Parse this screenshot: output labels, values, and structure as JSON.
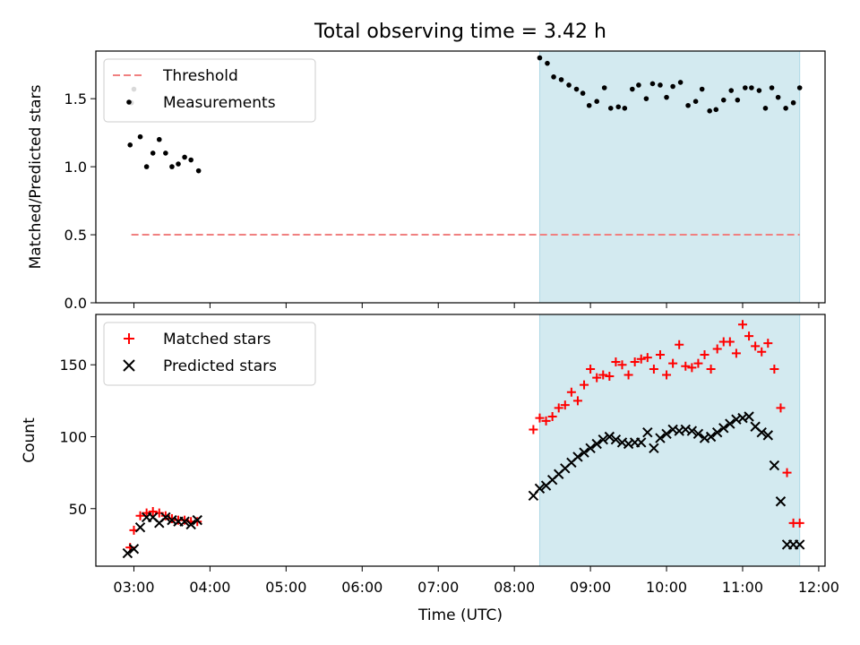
{
  "figure": {
    "title": "Total observing time = 3.42 h",
    "xlabel": "Time (UTC)",
    "x_ticks": [
      "03:00",
      "04:00",
      "05:00",
      "06:00",
      "07:00",
      "08:00",
      "09:00",
      "10:00",
      "11:00",
      "12:00"
    ],
    "highlight_color": "#d3eaf0",
    "highlight_edge_color": "#add8e6"
  },
  "chart_data": [
    {
      "type": "scatter",
      "ylabel": "Matched/Predicted stars",
      "xlim": [
        "02:30",
        "12:05"
      ],
      "ylim": [
        0,
        1.85
      ],
      "y_ticks": [
        "0.0",
        "0.5",
        "1.0",
        "1.5"
      ],
      "highlight_span": [
        "08:20",
        "11:45"
      ],
      "legend": {
        "placement": "upper-left",
        "entries": [
          "Threshold",
          "Measurements"
        ]
      },
      "series": [
        {
          "name": "Threshold",
          "kind": "dashed-line",
          "color": "#f08080",
          "x": [
            "02:58",
            "11:45"
          ],
          "y": [
            0.5,
            0.5
          ]
        },
        {
          "name": "Measurements",
          "kind": "dots",
          "color": "#000000",
          "x": [
            "02:57",
            "02:58",
            "03:00",
            "03:05",
            "03:10",
            "03:15",
            "03:20",
            "03:25",
            "03:30",
            "03:35",
            "03:40",
            "03:45",
            "03:51",
            "08:20",
            "08:26",
            "08:31",
            "08:37",
            "08:43",
            "08:49",
            "08:54",
            "08:59",
            "09:05",
            "09:11",
            "09:16",
            "09:22",
            "09:27",
            "09:33",
            "09:38",
            "09:44",
            "09:49",
            "09:55",
            "10:00",
            "10:05",
            "10:11",
            "10:17",
            "10:23",
            "10:28",
            "10:34",
            "10:39",
            "10:45",
            "10:51",
            "10:56",
            "11:02",
            "11:07",
            "11:13",
            "11:18",
            "11:23",
            "11:28",
            "11:34",
            "11:40",
            "11:45"
          ],
          "y": [
            1.16,
            1.47,
            1.57,
            1.22,
            1.0,
            1.1,
            1.2,
            1.1,
            1.0,
            1.02,
            1.07,
            1.05,
            0.97,
            1.8,
            1.76,
            1.66,
            1.64,
            1.6,
            1.57,
            1.54,
            1.45,
            1.48,
            1.58,
            1.43,
            1.44,
            1.43,
            1.57,
            1.6,
            1.5,
            1.61,
            1.6,
            1.51,
            1.59,
            1.62,
            1.45,
            1.48,
            1.57,
            1.41,
            1.42,
            1.49,
            1.56,
            1.49,
            1.58,
            1.58,
            1.56,
            1.43,
            1.58,
            1.51,
            1.43,
            1.47,
            1.58
          ]
        }
      ]
    },
    {
      "type": "scatter",
      "ylabel": "Count",
      "xlim": [
        "02:30",
        "12:05"
      ],
      "ylim": [
        10,
        185
      ],
      "y_ticks": [
        "50",
        "100",
        "150"
      ],
      "highlight_span": [
        "08:20",
        "11:45"
      ],
      "legend": {
        "placement": "upper-left",
        "entries": [
          "Matched stars",
          "Predicted stars"
        ]
      },
      "series": [
        {
          "name": "Matched stars",
          "kind": "plus",
          "color": "#ff0000",
          "x": [
            "02:57",
            "03:00",
            "03:05",
            "03:10",
            "03:15",
            "03:20",
            "03:25",
            "03:30",
            "03:35",
            "03:40",
            "03:45",
            "03:50",
            "08:15",
            "08:20",
            "08:25",
            "08:30",
            "08:35",
            "08:40",
            "08:45",
            "08:50",
            "08:55",
            "09:00",
            "09:05",
            "09:10",
            "09:15",
            "09:20",
            "09:25",
            "09:30",
            "09:35",
            "09:40",
            "09:45",
            "09:50",
            "09:55",
            "10:00",
            "10:05",
            "10:10",
            "10:15",
            "10:20",
            "10:25",
            "10:30",
            "10:35",
            "10:40",
            "10:45",
            "10:50",
            "10:55",
            "11:00",
            "11:05",
            "11:10",
            "11:15",
            "11:20",
            "11:25",
            "11:30",
            "11:35",
            "11:40",
            "11:45"
          ],
          "y": [
            23,
            35,
            45,
            47,
            48,
            47,
            45,
            43,
            42,
            42,
            41,
            41,
            105,
            113,
            111,
            114,
            120,
            122,
            131,
            125,
            136,
            147,
            141,
            143,
            142,
            152,
            150,
            143,
            152,
            154,
            155,
            147,
            157,
            143,
            151,
            164,
            149,
            148,
            151,
            157,
            147,
            161,
            166,
            166,
            158,
            178,
            170,
            163,
            159,
            165,
            147,
            120,
            75,
            40,
            40
          ]
        },
        {
          "name": "Predicted stars",
          "kind": "x",
          "color": "#000000",
          "x": [
            "02:55",
            "03:00",
            "03:05",
            "03:10",
            "03:15",
            "03:20",
            "03:25",
            "03:30",
            "03:35",
            "03:40",
            "03:45",
            "03:50",
            "08:15",
            "08:20",
            "08:25",
            "08:30",
            "08:35",
            "08:40",
            "08:45",
            "08:50",
            "08:55",
            "09:00",
            "09:05",
            "09:10",
            "09:15",
            "09:20",
            "09:25",
            "09:30",
            "09:35",
            "09:40",
            "09:45",
            "09:50",
            "09:55",
            "10:00",
            "10:05",
            "10:10",
            "10:15",
            "10:20",
            "10:25",
            "10:30",
            "10:35",
            "10:40",
            "10:45",
            "10:50",
            "10:55",
            "11:00",
            "11:05",
            "11:10",
            "11:15",
            "11:20",
            "11:25",
            "11:30",
            "11:35",
            "11:40",
            "11:45"
          ],
          "y": [
            19,
            22,
            37,
            44,
            44,
            40,
            44,
            42,
            41,
            41,
            39,
            42,
            59,
            64,
            66,
            70,
            74,
            78,
            82,
            86,
            89,
            92,
            95,
            98,
            100,
            98,
            96,
            95,
            96,
            96,
            103,
            92,
            99,
            102,
            105,
            104,
            105,
            104,
            102,
            99,
            100,
            103,
            106,
            109,
            112,
            113,
            114,
            107,
            103,
            101,
            80,
            55,
            25,
            25,
            25
          ]
        }
      ]
    }
  ]
}
